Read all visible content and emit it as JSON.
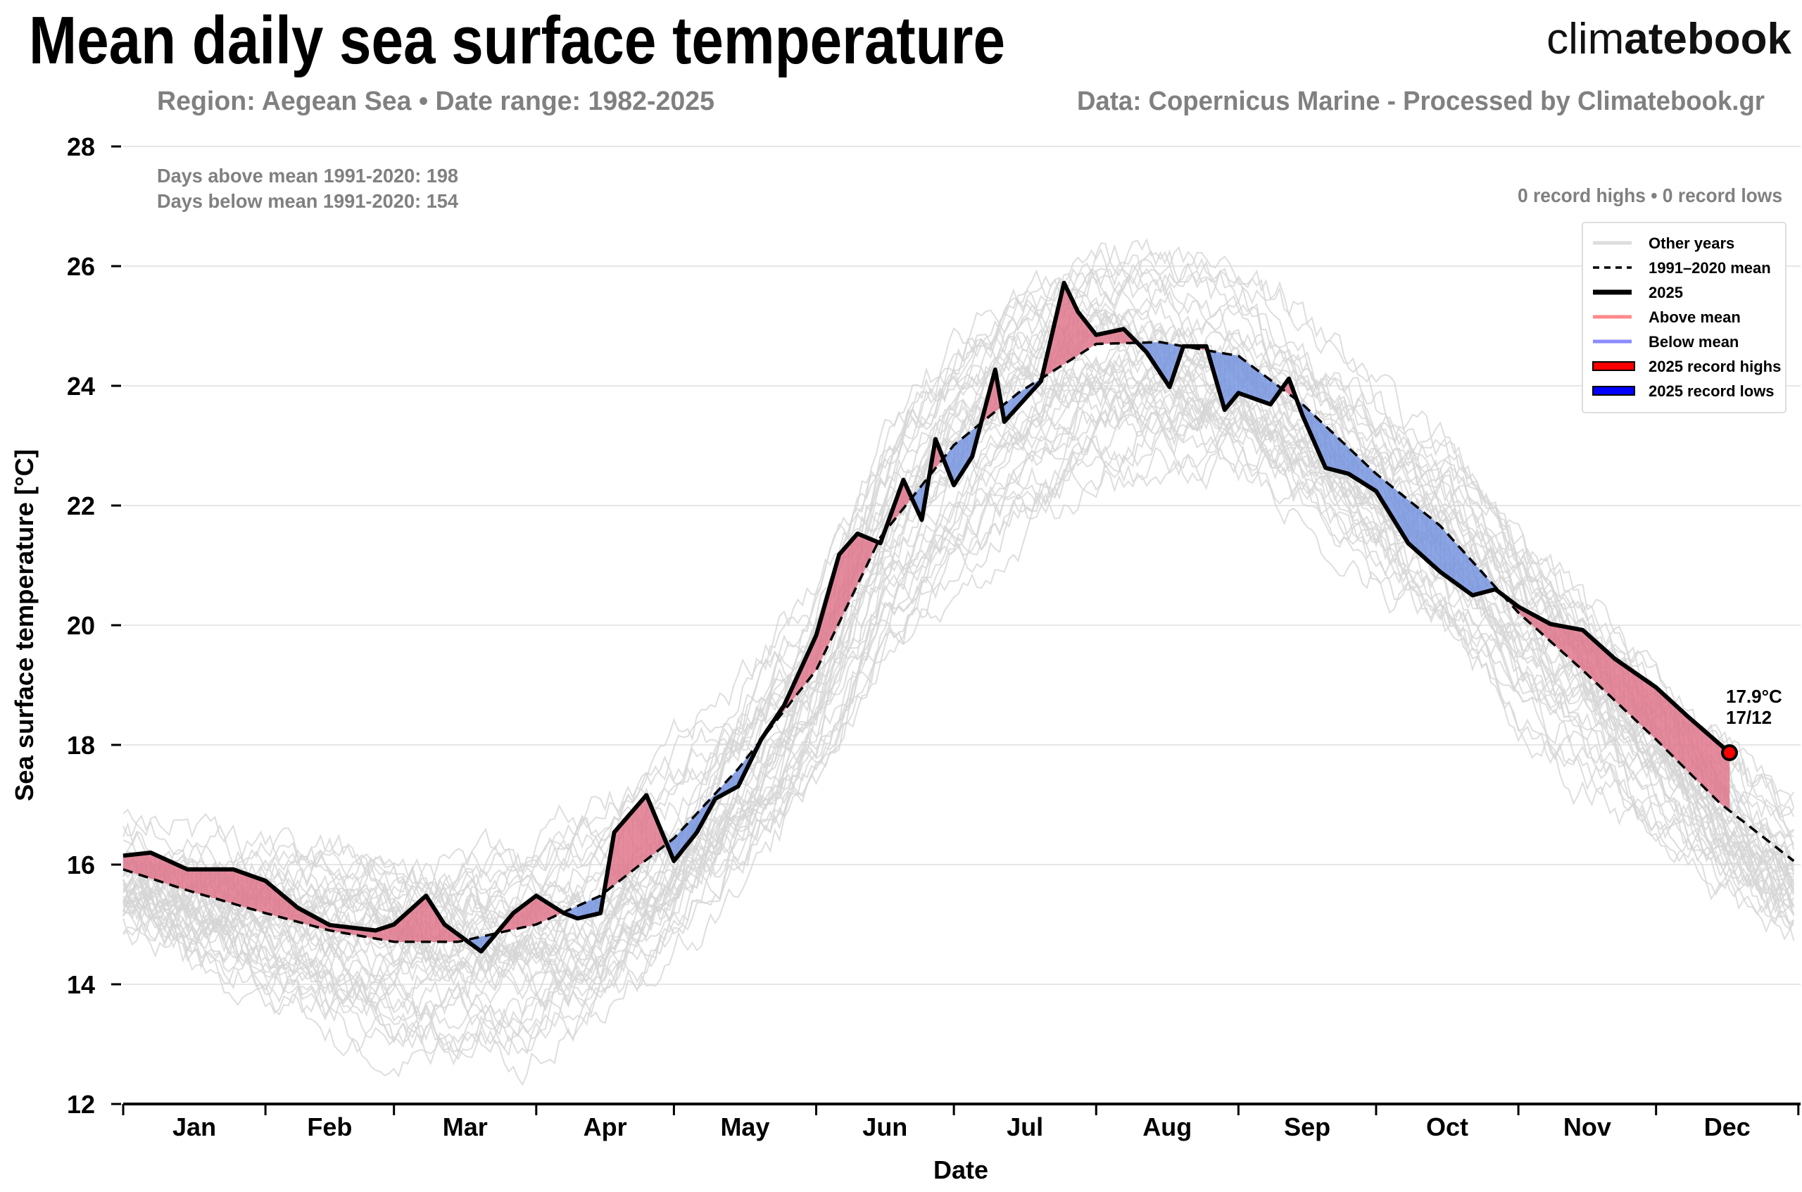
{
  "header": {
    "title": "Mean daily sea surface temperature",
    "subtitle_left": "Region: Aegean Sea • Date range: 1982-2025",
    "subtitle_right": "Data: Copernicus Marine - Processed by Climatebook.gr",
    "logo_light": "clim",
    "logo_bold": "atebook"
  },
  "stats": {
    "days_above": "Days above mean 1991-2020: 198",
    "days_below": "Days below mean 1991-2020: 154",
    "records": "0 record highs • 0 record lows"
  },
  "annotation": {
    "value": "17.9°C",
    "date": "17/12"
  },
  "legend": [
    {
      "label": "Other years",
      "style": "line",
      "color": "#dddddd"
    },
    {
      "label": "1991–2020 mean",
      "style": "dashed",
      "color": "#000000"
    },
    {
      "label": "2025",
      "style": "thick",
      "color": "#000000"
    },
    {
      "label": "Above mean",
      "style": "line",
      "color": "#ff8a8a"
    },
    {
      "label": "Below mean",
      "style": "line",
      "color": "#8a8aff"
    },
    {
      "label": "2025 record highs",
      "style": "box",
      "color": "#ff0000"
    },
    {
      "label": "2025 record lows",
      "style": "box",
      "color": "#0000ff"
    }
  ],
  "chart_data": {
    "type": "line",
    "title": "Mean daily sea surface temperature",
    "xlabel": "Date",
    "ylabel": "Sea surface temperature [°C]",
    "ylim": [
      12,
      28
    ],
    "yticks": [
      12,
      14,
      16,
      18,
      20,
      22,
      24,
      26,
      28
    ],
    "months": [
      "Jan",
      "Feb",
      "Mar",
      "Apr",
      "May",
      "Jun",
      "Jul",
      "Aug",
      "Sep",
      "Oct",
      "Nov",
      "Dec"
    ],
    "grid": "horizontal",
    "legend_position": "top-right",
    "colors": {
      "above": "#e0788e",
      "below": "#7896e0",
      "other_years": "#d6d6d6",
      "marker": "#ff0000"
    },
    "series": [
      {
        "name": "1991–2020 mean",
        "x": [
          "01-01",
          "01-15",
          "02-01",
          "02-15",
          "03-01",
          "03-15",
          "04-01",
          "04-15",
          "05-01",
          "05-15",
          "06-01",
          "06-15",
          "07-01",
          "07-15",
          "08-01",
          "08-15",
          "09-01",
          "09-15",
          "10-01",
          "10-15",
          "11-01",
          "11-15",
          "12-01",
          "12-15",
          "12-31"
        ],
        "y": [
          15.92,
          15.57,
          15.19,
          14.9,
          14.71,
          14.71,
          15.0,
          15.48,
          16.44,
          17.6,
          19.25,
          21.47,
          23.01,
          23.88,
          24.7,
          24.73,
          24.5,
          23.69,
          22.53,
          21.66,
          20.21,
          19.25,
          18.09,
          17.02,
          16.06
        ]
      },
      {
        "name": "2025",
        "x": [
          "01-01",
          "01-07",
          "01-15",
          "01-25",
          "02-01",
          "02-08",
          "02-15",
          "02-25",
          "03-01",
          "03-08",
          "03-12",
          "03-20",
          "03-27",
          "04-01",
          "04-07",
          "04-10",
          "04-15",
          "04-18",
          "04-25",
          "05-01",
          "05-06",
          "05-10",
          "05-15",
          "05-20",
          "05-25",
          "06-01",
          "06-06",
          "06-10",
          "06-15",
          "06-20",
          "06-24",
          "06-27",
          "07-01",
          "07-05",
          "07-10",
          "07-12",
          "07-20",
          "07-25",
          "07-28",
          "08-01",
          "08-07",
          "08-12",
          "08-17",
          "08-20",
          "08-25",
          "08-29",
          "09-01",
          "09-08",
          "09-12",
          "09-15",
          "09-20",
          "09-25",
          "10-01",
          "10-08",
          "10-15",
          "10-22",
          "10-27",
          "11-01",
          "11-08",
          "11-15",
          "11-22",
          "12-01",
          "12-08",
          "12-17"
        ],
        "y": [
          16.15,
          16.2,
          15.92,
          15.92,
          15.73,
          15.28,
          14.99,
          14.9,
          15.0,
          15.48,
          15.0,
          14.55,
          15.19,
          15.48,
          15.19,
          15.1,
          15.19,
          16.54,
          17.16,
          16.06,
          16.54,
          17.1,
          17.31,
          18.09,
          18.66,
          19.83,
          21.18,
          21.53,
          21.37,
          22.43,
          21.76,
          23.11,
          22.34,
          22.82,
          24.27,
          23.4,
          24.08,
          25.72,
          25.24,
          24.85,
          24.95,
          24.56,
          23.98,
          24.66,
          24.66,
          23.6,
          23.88,
          23.69,
          24.12,
          23.5,
          22.63,
          22.53,
          22.24,
          21.37,
          20.89,
          20.5,
          20.6,
          20.31,
          20.02,
          19.92,
          19.44,
          18.96,
          18.47,
          17.87
        ]
      }
    ]
  }
}
